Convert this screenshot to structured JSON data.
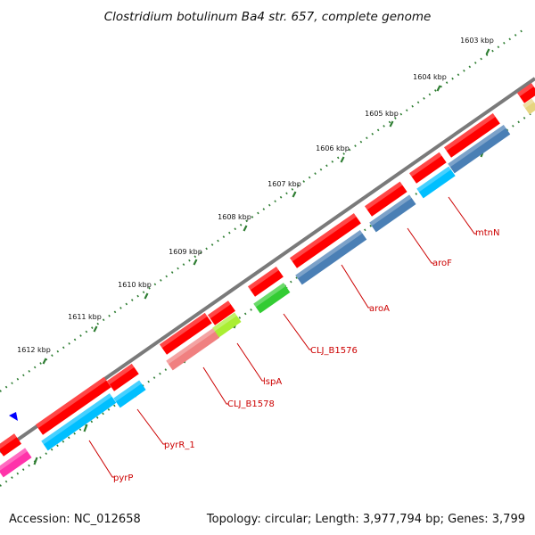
{
  "title": "Clostridium botulinum Ba4 str. 657, complete genome",
  "footer": {
    "accession": "Accession: NC_012658",
    "topology": "Topology: circular; Length: 3,977,794 bp; Genes: 3,799"
  },
  "scale_labels": [
    "1603 kbp",
    "1604 kbp",
    "1605 kbp",
    "1606 kbp",
    "1607 kbp",
    "1608 kbp",
    "1609 kbp",
    "1610 kbp",
    "1611 kbp",
    "1612 kbp"
  ],
  "gene_labels": [
    "mtnN",
    "aroF",
    "aroA",
    "CLJ_B1576",
    "lspA",
    "CLJ_B1578",
    "pyrR_1",
    "pyrP"
  ],
  "colors": {
    "backbone": "#7a7a7a",
    "gene_red": "#ff0000",
    "cds_blue": "#4a7fb5",
    "cds_cyan": "#00bfff",
    "cds_green": "#33cc33",
    "cds_pink": "#f08080",
    "cds_lime": "#aaee33",
    "cds_magenta": "#ff33aa",
    "cds_tan": "#e6d580",
    "tick_green": "#2e7d32",
    "label_red": "#cc0000",
    "marker_blue": "#0000ff"
  }
}
